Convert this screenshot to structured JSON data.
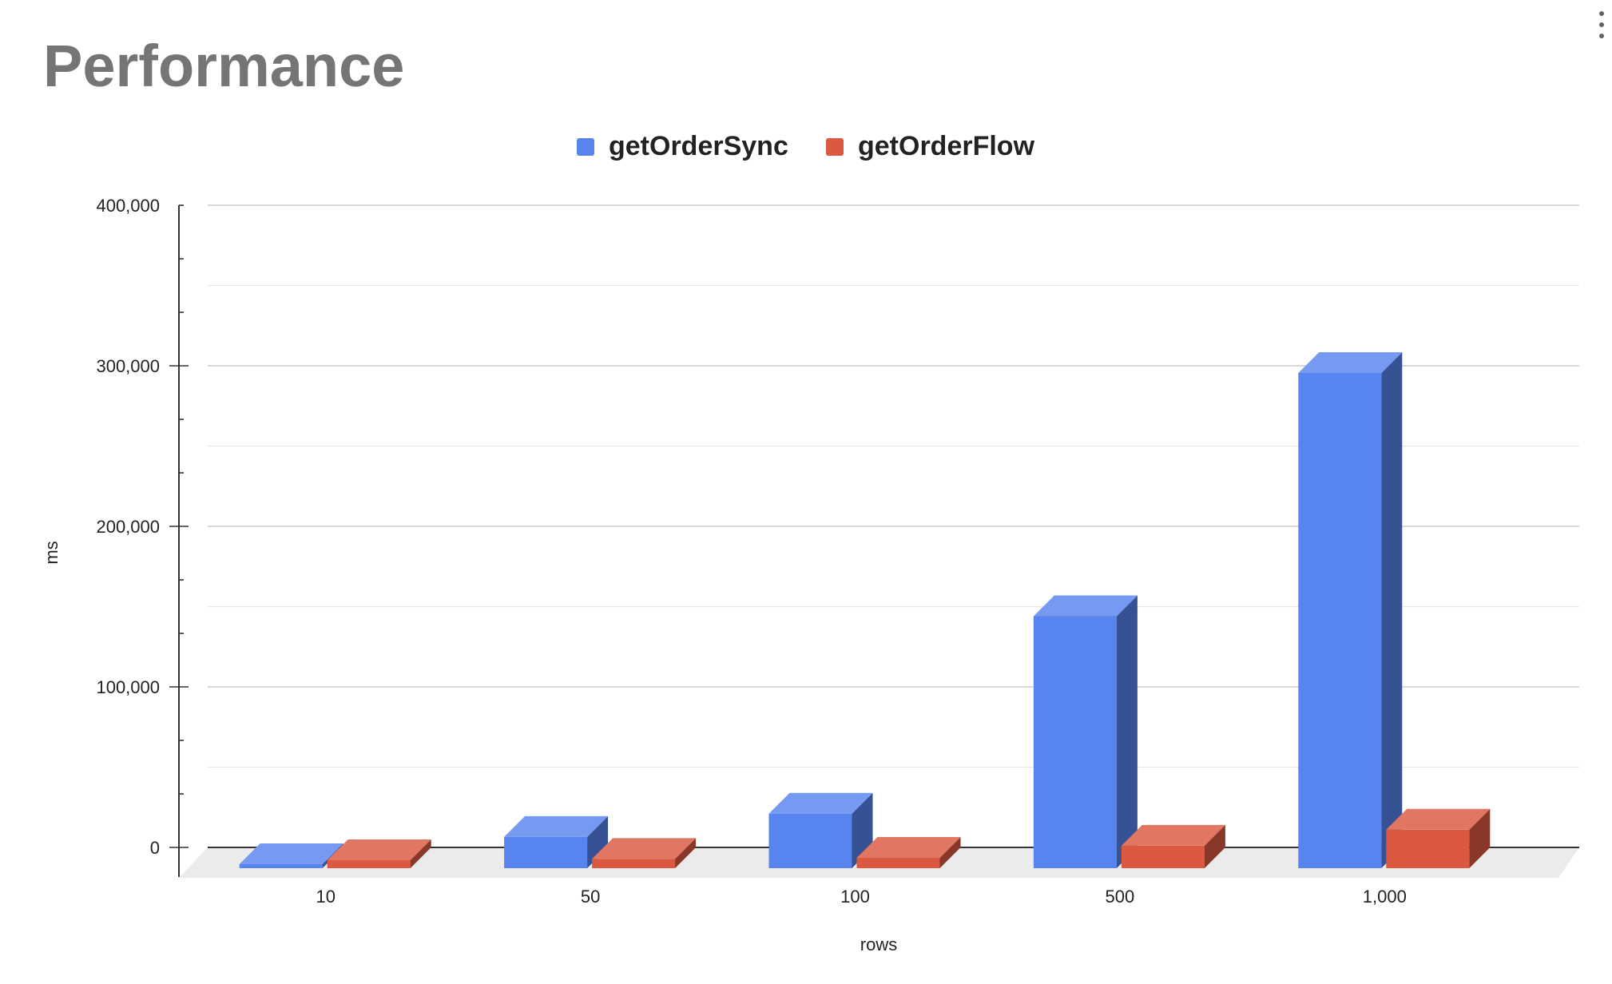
{
  "chart_data": {
    "type": "bar",
    "title": "Performance",
    "xlabel": "rows",
    "ylabel": "ms",
    "categories": [
      "10",
      "50",
      "100",
      "500",
      "1,000"
    ],
    "series": [
      {
        "name": "getOrderSync",
        "color": "#5884ef",
        "values": [
          -2500,
          14500,
          29000,
          152000,
          303500
        ]
      },
      {
        "name": "getOrderFlow",
        "color": "#db5841",
        "values": [
          0,
          800,
          1500,
          9000,
          19000
        ]
      }
    ],
    "ylim": [
      -12000,
      400000
    ],
    "yticks": [
      0,
      100000,
      200000,
      300000,
      400000
    ],
    "ytick_labels": [
      "0",
      "100,000",
      "200,000",
      "300,000",
      "400,000"
    ],
    "grid": true,
    "legend": "top-center",
    "style": "3d-column"
  },
  "menu": {
    "icon": "more-vert-icon"
  }
}
